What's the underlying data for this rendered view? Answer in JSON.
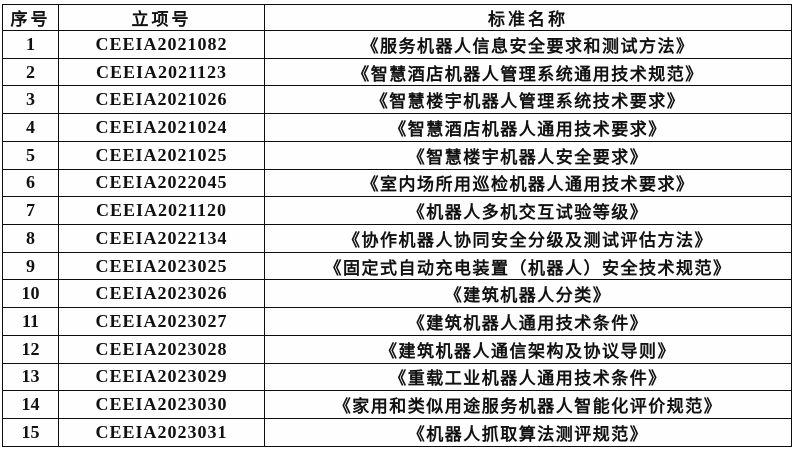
{
  "colors": {
    "background": "#ffffff",
    "table_background": "#fefefe",
    "border": "#0d0d0d",
    "text": "#111111"
  },
  "table": {
    "headers": {
      "serial": "序号",
      "project_id": "立项号",
      "standard_name": "标准名称"
    },
    "rows": [
      {
        "no": "1",
        "project_id": "CEEIA2021082",
        "standard_name": "《服务机器人信息安全要求和测试方法》"
      },
      {
        "no": "2",
        "project_id": "CEEIA2021123",
        "standard_name": "《智慧酒店机器人管理系统通用技术规范》"
      },
      {
        "no": "3",
        "project_id": "CEEIA2021026",
        "standard_name": "《智慧楼宇机器人管理系统技术要求》"
      },
      {
        "no": "4",
        "project_id": "CEEIA2021024",
        "standard_name": "《智慧酒店机器人通用技术要求》"
      },
      {
        "no": "5",
        "project_id": "CEEIA2021025",
        "standard_name": "《智慧楼宇机器人安全要求》"
      },
      {
        "no": "6",
        "project_id": "CEEIA2022045",
        "standard_name": "《室内场所用巡检机器人通用技术要求》"
      },
      {
        "no": "7",
        "project_id": "CEEIA2021120",
        "standard_name": "《机器人多机交互试验等级》"
      },
      {
        "no": "8",
        "project_id": "CEEIA2022134",
        "standard_name": "《协作机器人协同安全分级及测试评估方法》"
      },
      {
        "no": "9",
        "project_id": "CEEIA2023025",
        "standard_name": "《固定式自动充电装置（机器人）安全技术规范》"
      },
      {
        "no": "10",
        "project_id": "CEEIA2023026",
        "standard_name": "《建筑机器人分类》"
      },
      {
        "no": "11",
        "project_id": "CEEIA2023027",
        "standard_name": "《建筑机器人通用技术条件》"
      },
      {
        "no": "12",
        "project_id": "CEEIA2023028",
        "standard_name": "《建筑机器人通信架构及协议导则》"
      },
      {
        "no": "13",
        "project_id": "CEEIA2023029",
        "standard_name": "《重载工业机器人通用技术条件》"
      },
      {
        "no": "14",
        "project_id": "CEEIA2023030",
        "standard_name": "《家用和类似用途服务机器人智能化评价规范》"
      },
      {
        "no": "15",
        "project_id": "CEEIA2023031",
        "standard_name": "《机器人抓取算法测评规范》"
      }
    ]
  }
}
